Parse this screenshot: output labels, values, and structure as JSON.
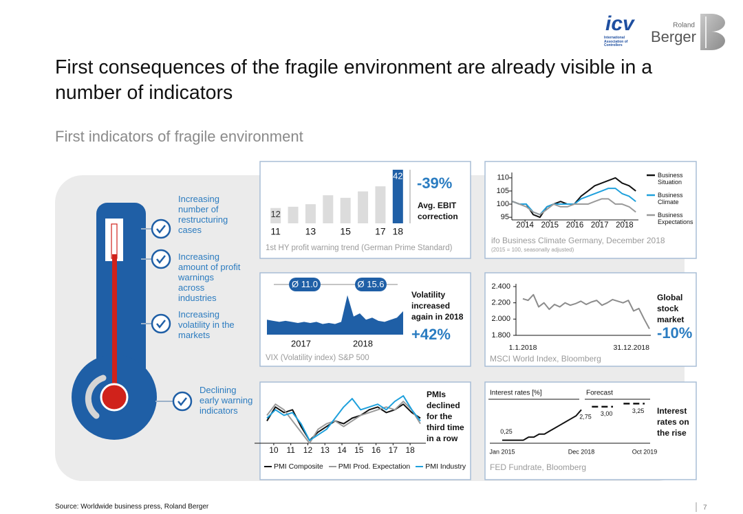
{
  "logos": {
    "icv": "icv",
    "icv_tagline": "International Association of Controllers",
    "rb_small": "Roland",
    "rb": "Berger"
  },
  "title": "First consequences of the fragile environment are already visible in a number of indicators",
  "subtitle": "First indicators of fragile environment",
  "indicators": [
    "Increasing number of restructuring cases",
    "Increasing amount of profit warnings across industries",
    "Increasing volatility in the markets",
    "Declining early warning indicators"
  ],
  "chart_data": [
    {
      "type": "bar",
      "categories": [
        "11",
        null,
        "13",
        null,
        "15",
        null,
        "17",
        "18"
      ],
      "values": [
        12,
        13,
        15,
        22,
        20,
        25,
        29,
        42
      ],
      "value_labels": [
        "12",
        null,
        null,
        null,
        null,
        null,
        null,
        "42"
      ],
      "colors": [
        "#dcdcdc",
        "#dcdcdc",
        "#dcdcdc",
        "#dcdcdc",
        "#dcdcdc",
        "#dcdcdc",
        "#dcdcdc",
        "#1f5fa6"
      ],
      "ylim": [
        0,
        42
      ],
      "change": "-39%",
      "note": "Avg. EBIT correction",
      "caption": "1st HY profit warning trend (German Prime Standard)"
    },
    {
      "type": "line",
      "x": [
        2013.5,
        2013.78,
        2014.05,
        2014.33,
        2014.6,
        2014.88,
        2015.15,
        2015.43,
        2015.7,
        2015.98,
        2016.25,
        2016.53,
        2016.8,
        2017.08,
        2017.35,
        2017.63,
        2017.9,
        2018.18,
        2018.45
      ],
      "xlim": [
        2013.5,
        2018.5
      ],
      "xticks": [
        2014,
        2015,
        2016,
        2017,
        2018
      ],
      "ylim": [
        94,
        111
      ],
      "yticks": [
        95,
        100,
        105,
        110
      ],
      "series": [
        {
          "name": "Business Situation",
          "color": "#111111",
          "values": [
            101,
            100,
            100,
            96,
            95,
            99,
            100,
            101,
            100,
            100,
            103,
            105,
            107,
            108,
            109,
            110,
            108,
            107,
            105
          ]
        },
        {
          "name": "Business Climate",
          "color": "#1ea0dc",
          "values": [
            101,
            100,
            100,
            97,
            96,
            99,
            100,
            100,
            100,
            100,
            102,
            103,
            104,
            105,
            106,
            106,
            104,
            103,
            101
          ]
        },
        {
          "name": "Business Expectations",
          "color": "#9a9a9a",
          "values": [
            101,
            100,
            99,
            97,
            96,
            98,
            100,
            99,
            99,
            100,
            100,
            100,
            101,
            102,
            102,
            100,
            100,
            99,
            97
          ]
        }
      ],
      "caption": "ifo Business Climate Germany, December 2018",
      "caption_note": "(2015 = 100, seasonally adjusted)"
    },
    {
      "type": "area",
      "x": [
        2016.45,
        2016.55,
        2016.65,
        2016.75,
        2016.85,
        2016.95,
        2017.05,
        2017.15,
        2017.25,
        2017.35,
        2017.45,
        2017.55,
        2017.65,
        2017.75,
        2017.85,
        2017.95,
        2018.05,
        2018.15,
        2018.25,
        2018.35,
        2018.45,
        2018.55,
        2018.65
      ],
      "xlim": [
        2016.45,
        2018.95
      ],
      "xticks": [
        2017,
        2018
      ],
      "ylim": [
        0,
        40
      ],
      "values": [
        14,
        13,
        12,
        13,
        12,
        11,
        12,
        11,
        12,
        10,
        11,
        10,
        12,
        37,
        17,
        20,
        14,
        16,
        13,
        12,
        14,
        16,
        22
      ],
      "color": "#1f5fa6",
      "averages": [
        "Ø 11.0",
        "Ø 15.6"
      ],
      "note": "Volatility increased again in 2018",
      "change": "+42%",
      "caption": "VIX (Volatility index) S&P 500"
    },
    {
      "type": "line",
      "categories": [
        "1.1.2018",
        null,
        null,
        null,
        null,
        null,
        null,
        null,
        null,
        null,
        null,
        null,
        null,
        null,
        null,
        null,
        null,
        null,
        null,
        null,
        null,
        null,
        null,
        null,
        "31.12.2018"
      ],
      "values": [
        2250,
        2230,
        2300,
        2150,
        2200,
        2120,
        2180,
        2150,
        2200,
        2170,
        2190,
        2220,
        2180,
        2210,
        2230,
        2170,
        2200,
        2240,
        2220,
        2200,
        2230,
        2100,
        2130,
        2000,
        1880
      ],
      "color": "#8c8c8c",
      "ylim": [
        1800,
        2400
      ],
      "yticks": [
        {
          "value": 2400,
          "label": "2.400"
        },
        {
          "value": 2200,
          "label": "2.200"
        },
        {
          "value": 2000,
          "label": "2.000"
        },
        {
          "value": 1800,
          "label": "1.800"
        }
      ],
      "note": "Global stock market",
      "change": "-10%",
      "caption": "MSCI World Index, Bloomberg"
    },
    {
      "type": "line",
      "x": [
        9.6,
        10.1,
        10.6,
        11.1,
        11.6,
        12.1,
        12.6,
        13.1,
        13.6,
        14.1,
        14.6,
        15.1,
        15.6,
        16.1,
        16.6,
        17.1,
        17.6,
        18.1,
        18.6
      ],
      "xlim": [
        9.6,
        18.6
      ],
      "xticks": [
        10,
        11,
        12,
        13,
        14,
        15,
        16,
        17,
        18
      ],
      "ylim": [
        44,
        62
      ],
      "series": [
        {
          "name": "PMI Composite",
          "color": "#111111",
          "values": [
            52,
            57,
            55,
            56,
            50,
            45,
            48,
            50,
            52,
            51,
            53,
            54,
            56,
            57,
            55,
            56,
            58,
            55,
            53
          ]
        },
        {
          "name": "PMI Prod. Expectation",
          "color": "#9a9a9a",
          "values": [
            54,
            58,
            56,
            52,
            48,
            44,
            49,
            51,
            52,
            50,
            52,
            54,
            55,
            56,
            57,
            56,
            59,
            56,
            51
          ]
        },
        {
          "name": "PMI Industry",
          "color": "#1ea0dc",
          "values": [
            53,
            56,
            54,
            55,
            51,
            45,
            47,
            49,
            53,
            57,
            60,
            56,
            57,
            58,
            56,
            59,
            61,
            56,
            52
          ]
        }
      ],
      "note": "PMIs declined for the third time in a row"
    },
    {
      "type": "line",
      "categories": [
        "Jan 2015",
        null,
        null,
        null,
        null,
        null,
        null,
        null,
        null,
        null,
        null,
        null,
        null,
        null,
        null,
        "Dec 2018",
        null,
        null,
        null,
        null,
        null,
        null,
        null,
        null,
        null,
        null,
        null,
        "Oct 2019"
      ],
      "ylim": [
        0,
        3.5
      ],
      "series": [
        {
          "color": "#111111",
          "values": [
            0.25,
            0.25,
            0.25,
            0.25,
            0.25,
            0.5,
            0.5,
            0.75,
            0.75,
            1.0,
            1.25,
            1.5,
            1.75,
            2.0,
            2.25,
            2.75,
            null,
            null,
            null,
            null,
            null,
            null,
            null,
            null,
            null,
            null,
            null,
            null
          ],
          "value_labels": [
            "0,25",
            null,
            null,
            null,
            null,
            null,
            null,
            null,
            null,
            null,
            null,
            null,
            null,
            null,
            null,
            "2,75",
            null,
            null,
            null,
            null,
            null,
            null,
            null,
            null,
            null,
            null,
            null,
            null
          ]
        },
        {
          "color": "#111111",
          "dashed": true,
          "values": [
            null,
            null,
            null,
            null,
            null,
            null,
            null,
            null,
            null,
            null,
            null,
            null,
            null,
            null,
            null,
            null,
            null,
            3.0,
            3.0,
            3.0,
            3.0,
            3.0,
            null,
            3.25,
            3.25,
            3.25,
            3.25,
            3.25
          ],
          "value_labels": [
            null,
            null,
            null,
            null,
            null,
            null,
            null,
            null,
            null,
            null,
            null,
            null,
            null,
            null,
            null,
            null,
            null,
            null,
            null,
            "3,00",
            null,
            null,
            null,
            null,
            null,
            "3,25",
            null,
            null
          ]
        }
      ],
      "axis_label": "Interest rates [%]",
      "forecast_label": "Forecast",
      "note": "Interest rates on the rise",
      "caption": "FED Fundrate, Bloomberg"
    }
  ],
  "footer": {
    "source": "Source: Worldwide business press, Roland Berger",
    "page": "7"
  }
}
